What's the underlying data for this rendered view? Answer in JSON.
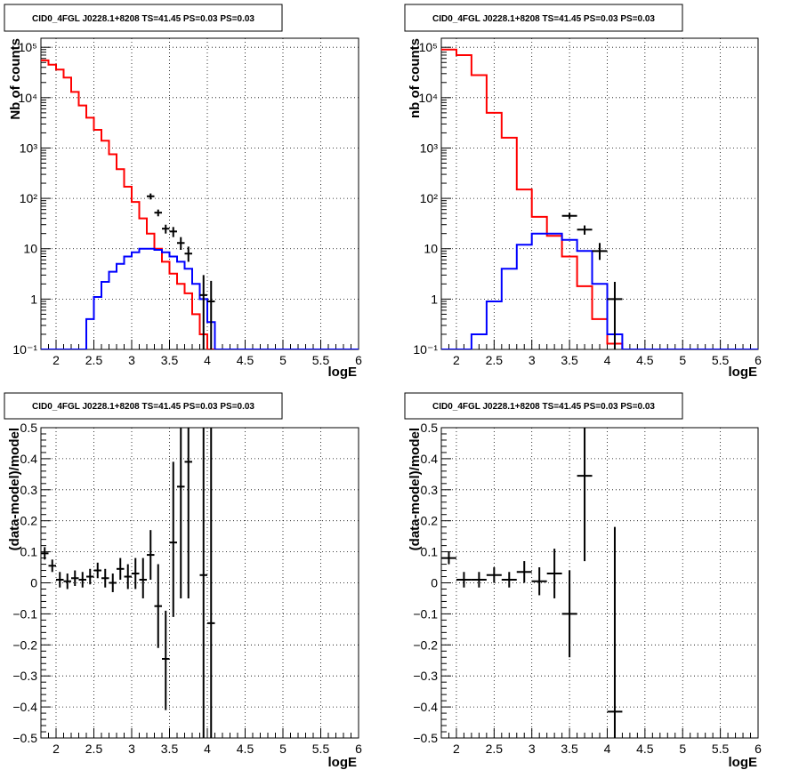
{
  "chart_data": [
    {
      "type": "line",
      "title": "CID0_4FGL J0228.1+8208 TS=41.45 PS=0.03 PS=0.03",
      "xlabel": "logE",
      "ylabel": "Nb of counts",
      "xlim": [
        1.8,
        6.0
      ],
      "ylim": [
        0.1,
        150000
      ],
      "yscale": "log",
      "grid": true,
      "xticks": [
        "2",
        "2.5",
        "3",
        "3.5",
        "4",
        "4.5",
        "5",
        "5.5",
        "6"
      ],
      "yticks": [
        "10⁻¹",
        "1",
        "10",
        "10²",
        "10³",
        "10⁴",
        "10⁵"
      ],
      "bin_edges": [
        1.8,
        1.9,
        2.0,
        2.1,
        2.2,
        2.3,
        2.4,
        2.5,
        2.6,
        2.7,
        2.8,
        2.9,
        3.0,
        3.1,
        3.2,
        3.3,
        3.4,
        3.5,
        3.6,
        3.7,
        3.8,
        3.9,
        4.0,
        4.1,
        4.2,
        4.3,
        4.4,
        4.5,
        4.6,
        4.7,
        4.8,
        4.9,
        5.0,
        5.1,
        5.2,
        5.3,
        5.4,
        5.5,
        5.6,
        5.7,
        5.8,
        5.9,
        6.0
      ],
      "series": [
        {
          "color": "#ff0000",
          "style": "step",
          "values": [
            55000,
            45000,
            36000,
            25000,
            13000,
            7000,
            4000,
            2300,
            1400,
            750,
            380,
            170,
            85,
            40,
            20,
            10,
            5.5,
            3.2,
            2,
            1.3,
            0.5,
            0.2,
            0.1,
            0.05,
            0.05,
            0.05,
            0.05,
            0.05,
            0.05,
            0.05,
            0.05,
            0.05,
            0.05,
            0.05,
            0.05,
            0.05,
            0.05,
            0.05,
            0.05,
            0.05,
            0.05,
            0.05
          ]
        },
        {
          "color": "#0000ff",
          "style": "step",
          "values": [
            0.1,
            0.1,
            0.1,
            0.1,
            0.1,
            0.1,
            0.4,
            1.1,
            2.2,
            3.5,
            5,
            7,
            8.5,
            10,
            10,
            9.5,
            8.5,
            7,
            5.5,
            4,
            2,
            1,
            0.35,
            0.1,
            0.1,
            0.1,
            0.1,
            0.1,
            0.1,
            0.1,
            0.1,
            0.1,
            0.1,
            0.1,
            0.1,
            0.1,
            0.1,
            0.1,
            0.1,
            0.1,
            0.1,
            0.1
          ]
        },
        {
          "color": "#000000",
          "style": "points",
          "points": [
            {
              "x": 3.25,
              "y": 110,
              "lo": 95,
              "hi": 125
            },
            {
              "x": 3.35,
              "y": 52,
              "lo": 44,
              "hi": 60
            },
            {
              "x": 3.45,
              "y": 25,
              "lo": 20,
              "hi": 30
            },
            {
              "x": 3.55,
              "y": 22,
              "lo": 17,
              "hi": 27
            },
            {
              "x": 3.65,
              "y": 13,
              "lo": 9.5,
              "hi": 17
            },
            {
              "x": 3.75,
              "y": 8,
              "lo": 5.5,
              "hi": 11
            },
            {
              "x": 3.95,
              "y": 1.2,
              "lo": 0.1,
              "hi": 3
            },
            {
              "x": 4.05,
              "y": 0.9,
              "lo": 0.05,
              "hi": 2.3
            }
          ]
        }
      ]
    },
    {
      "type": "line",
      "title": "CID0_4FGL J0228.1+8208 TS=41.45 PS=0.03 PS=0.03",
      "xlabel": "logE",
      "ylabel": "nb of counts",
      "xlim": [
        1.8,
        6.0
      ],
      "ylim": [
        0.1,
        150000
      ],
      "yscale": "log",
      "grid": true,
      "xticks": [
        "2",
        "2.5",
        "3",
        "3.5",
        "4",
        "4.5",
        "5",
        "5.5",
        "6"
      ],
      "yticks": [
        "10⁻¹",
        "1",
        "10",
        "10²",
        "10³",
        "10⁴",
        "10⁵"
      ],
      "bin_edges": [
        1.8,
        2.0,
        2.2,
        2.4,
        2.6,
        2.8,
        3.0,
        3.2,
        3.4,
        3.6,
        3.8,
        4.0,
        4.2,
        4.4,
        4.6,
        4.8,
        5.0,
        5.2,
        5.4,
        5.6,
        5.8,
        6.0
      ],
      "series": [
        {
          "color": "#ff0000",
          "style": "step",
          "values": [
            90000,
            70000,
            28000,
            5000,
            1600,
            150,
            43,
            18,
            7,
            1.8,
            0.4,
            0.13,
            0.05,
            0.05,
            0.05,
            0.05,
            0.05,
            0.05,
            0.05,
            0.05,
            0.05
          ]
        },
        {
          "color": "#0000ff",
          "style": "step",
          "values": [
            0.1,
            0.1,
            0.2,
            0.9,
            4,
            12,
            20,
            20,
            15,
            9,
            2,
            0.2,
            0.1,
            0.1,
            0.1,
            0.1,
            0.1,
            0.1,
            0.1,
            0.1,
            0.1
          ]
        },
        {
          "color": "#000000",
          "style": "points",
          "points": [
            {
              "x": 3.5,
              "y": 45,
              "lo": 39,
              "hi": 52
            },
            {
              "x": 3.7,
              "y": 24,
              "lo": 19,
              "hi": 29
            },
            {
              "x": 3.9,
              "y": 9,
              "lo": 6,
              "hi": 13
            },
            {
              "x": 4.1,
              "y": 1,
              "lo": 0.05,
              "hi": 2.2
            }
          ]
        }
      ]
    },
    {
      "type": "scatter",
      "title": "CID0_4FGL J0228.1+8208 TS=41.45 PS=0.03 PS=0.03",
      "xlabel": "logE",
      "ylabel": "(data-model)/model",
      "xlim": [
        1.8,
        6.0
      ],
      "ylim": [
        -0.5,
        0.5
      ],
      "grid": true,
      "xticks": [
        "2",
        "2.5",
        "3",
        "3.5",
        "4",
        "4.5",
        "5",
        "5.5",
        "6"
      ],
      "yticks": [
        "−0.5",
        "−0.4",
        "−0.3",
        "−0.2",
        "−0.1",
        "0",
        "0.1",
        "0.2",
        "0.3",
        "0.4",
        "0.5"
      ],
      "points": [
        {
          "x": 1.85,
          "y": 0.095,
          "lo": 0.075,
          "hi": 0.115
        },
        {
          "x": 1.95,
          "y": 0.055,
          "lo": 0.035,
          "hi": 0.075
        },
        {
          "x": 2.05,
          "y": 0.01,
          "lo": -0.015,
          "hi": 0.035
        },
        {
          "x": 2.15,
          "y": 0.005,
          "lo": -0.02,
          "hi": 0.03
        },
        {
          "x": 2.25,
          "y": 0.015,
          "lo": -0.01,
          "hi": 0.04
        },
        {
          "x": 2.35,
          "y": 0.01,
          "lo": -0.015,
          "hi": 0.035
        },
        {
          "x": 2.45,
          "y": 0.02,
          "lo": -0.005,
          "hi": 0.045
        },
        {
          "x": 2.55,
          "y": 0.04,
          "lo": 0.015,
          "hi": 0.065
        },
        {
          "x": 2.65,
          "y": 0.015,
          "lo": -0.015,
          "hi": 0.045
        },
        {
          "x": 2.75,
          "y": 0.0,
          "lo": -0.03,
          "hi": 0.03
        },
        {
          "x": 2.85,
          "y": 0.045,
          "lo": 0.01,
          "hi": 0.08
        },
        {
          "x": 2.95,
          "y": 0.02,
          "lo": -0.02,
          "hi": 0.06
        },
        {
          "x": 3.05,
          "y": 0.03,
          "lo": -0.02,
          "hi": 0.08
        },
        {
          "x": 3.15,
          "y": 0.01,
          "lo": -0.05,
          "hi": 0.08
        },
        {
          "x": 3.25,
          "y": 0.09,
          "lo": 0.01,
          "hi": 0.17
        },
        {
          "x": 3.35,
          "y": -0.075,
          "lo": -0.21,
          "hi": 0.06
        },
        {
          "x": 3.45,
          "y": -0.245,
          "lo": -0.41,
          "hi": -0.09
        },
        {
          "x": 3.55,
          "y": 0.13,
          "lo": -0.11,
          "hi": 0.39
        },
        {
          "x": 3.65,
          "y": 0.31,
          "lo": -0.05,
          "hi": 0.5
        },
        {
          "x": 3.75,
          "y": 0.39,
          "lo": -0.05,
          "hi": 0.5
        },
        {
          "x": 3.95,
          "y": 0.025,
          "lo": -0.5,
          "hi": 0.5
        },
        {
          "x": 4.05,
          "y": -0.13,
          "lo": -0.5,
          "hi": 0.5
        }
      ]
    },
    {
      "type": "scatter",
      "title": "CID0_4FGL J0228.1+8208 TS=41.45 PS=0.03 PS=0.03",
      "xlabel": "logE",
      "ylabel": "(data-model)/model",
      "xlim": [
        1.8,
        6.0
      ],
      "ylim": [
        -0.5,
        0.5
      ],
      "grid": true,
      "xticks": [
        "2",
        "2.5",
        "3",
        "3.5",
        "4",
        "4.5",
        "5",
        "5.5",
        "6"
      ],
      "yticks": [
        "−0.5",
        "−0.4",
        "−0.3",
        "−0.2",
        "−0.1",
        "0",
        "0.1",
        "0.2",
        "0.3",
        "0.4",
        "0.5"
      ],
      "points": [
        {
          "x": 1.9,
          "y": 0.08,
          "lo": 0.06,
          "hi": 0.1
        },
        {
          "x": 2.1,
          "y": 0.01,
          "lo": -0.015,
          "hi": 0.035
        },
        {
          "x": 2.3,
          "y": 0.01,
          "lo": -0.015,
          "hi": 0.035
        },
        {
          "x": 2.5,
          "y": 0.025,
          "lo": 0.0,
          "hi": 0.05
        },
        {
          "x": 2.7,
          "y": 0.01,
          "lo": -0.015,
          "hi": 0.035
        },
        {
          "x": 2.9,
          "y": 0.035,
          "lo": 0.0,
          "hi": 0.07
        },
        {
          "x": 3.1,
          "y": 0.005,
          "lo": -0.04,
          "hi": 0.05
        },
        {
          "x": 3.3,
          "y": 0.03,
          "lo": -0.05,
          "hi": 0.11
        },
        {
          "x": 3.5,
          "y": -0.1,
          "lo": -0.24,
          "hi": 0.04
        },
        {
          "x": 3.7,
          "y": 0.345,
          "lo": 0.07,
          "hi": 0.5
        },
        {
          "x": 4.1,
          "y": -0.415,
          "lo": -0.5,
          "hi": 0.18
        }
      ]
    }
  ]
}
